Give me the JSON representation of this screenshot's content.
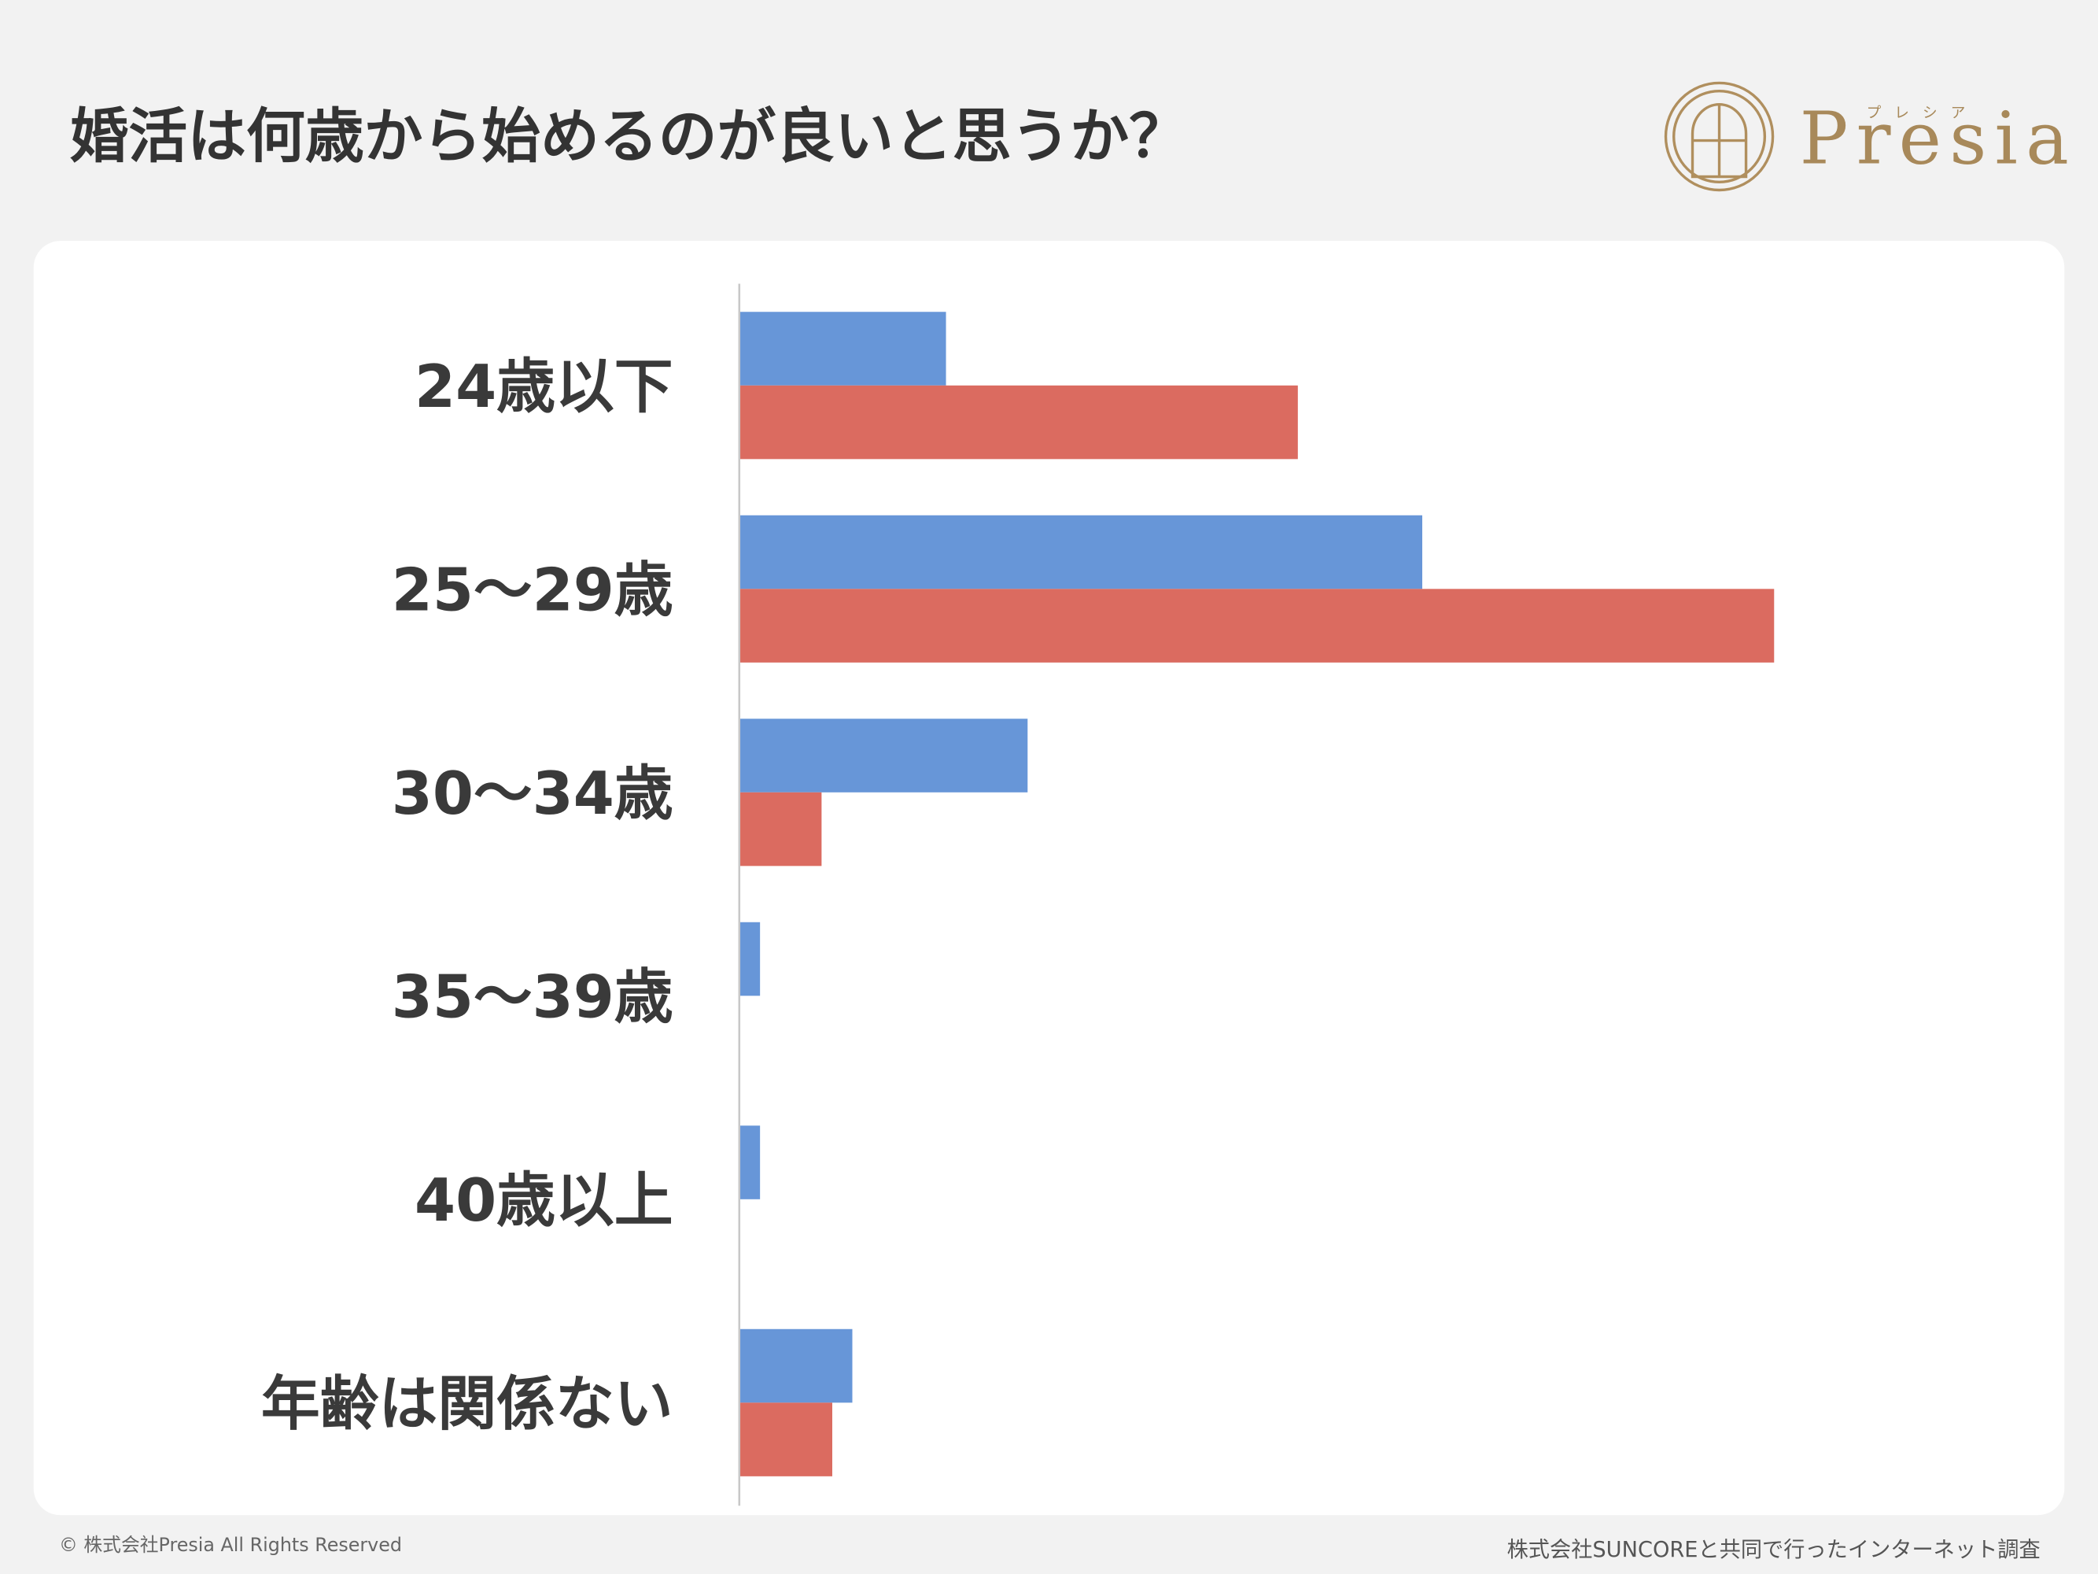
{
  "chart_data": {
    "type": "hbar",
    "title": "婚活は何歳から始めるのが良いと思うか？",
    "categories": [
      "24歳以下",
      "25～29歳",
      "30～34歳",
      "35～39歳",
      "40歳以上",
      "年齢は関係ない"
    ],
    "series": [
      {
        "color": "#6796d8",
        "values": [
          15.4,
          51,
          21.5,
          1.5,
          1.5,
          8.4
        ]
      },
      {
        "color": "#db6b60",
        "values": [
          41.7,
          77.3,
          6.1,
          0,
          0,
          6.9
        ]
      }
    ],
    "xlim": [
      0,
      100
    ]
  },
  "logo": {
    "name": "Presia",
    "kana": "プレシア"
  },
  "footer": {
    "copyright": "© 株式会社Presia All Rights Reserved",
    "source": "株式会社SUNCOREと共同で行ったインターネット調査"
  }
}
